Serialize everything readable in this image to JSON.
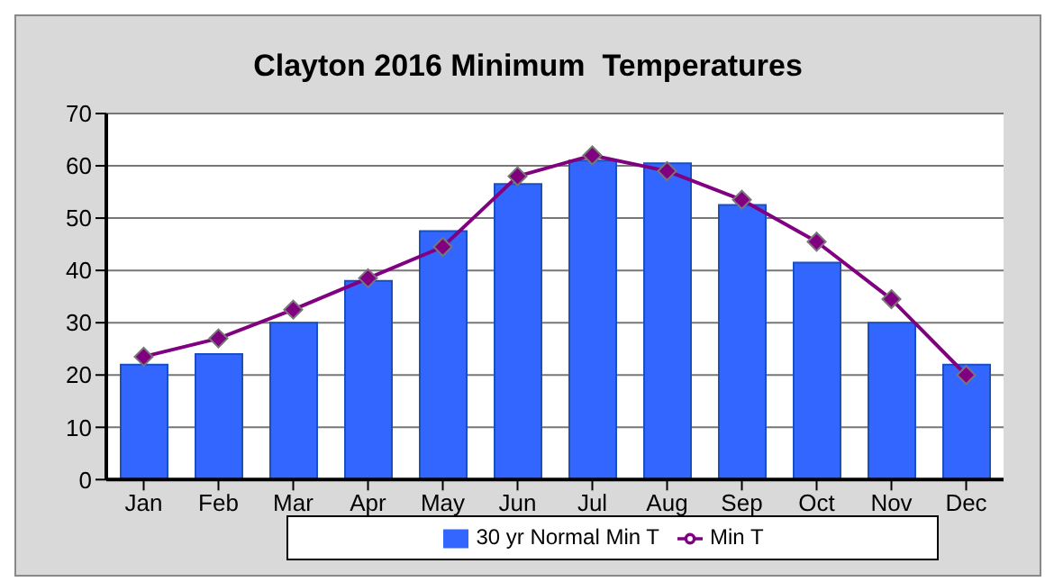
{
  "chart_data": {
    "type": "bar",
    "title": "Clayton 2016 Minimum  Temperatures",
    "categories": [
      "Jan",
      "Feb",
      "Mar",
      "Apr",
      "May",
      "Jun",
      "Jul",
      "Aug",
      "Sep",
      "Oct",
      "Nov",
      "Dec"
    ],
    "series": [
      {
        "name": "30 yr Normal Min T",
        "color": "#3366ff",
        "values": [
          22,
          24,
          30,
          38,
          47.5,
          56.5,
          61,
          60.5,
          52.5,
          41.5,
          30,
          22
        ]
      },
      {
        "name": "Min T",
        "type": "line",
        "color": "#800080",
        "values": [
          23.5,
          27,
          32.5,
          38.5,
          44.5,
          58,
          62,
          59,
          53.5,
          45.5,
          34.5,
          20
        ],
        "marker": "diamond"
      }
    ],
    "ylim": [
      0,
      70
    ],
    "yticks": [
      0,
      10,
      20,
      30,
      40,
      50,
      60,
      70
    ],
    "grid": "y",
    "legend": "bottom"
  }
}
